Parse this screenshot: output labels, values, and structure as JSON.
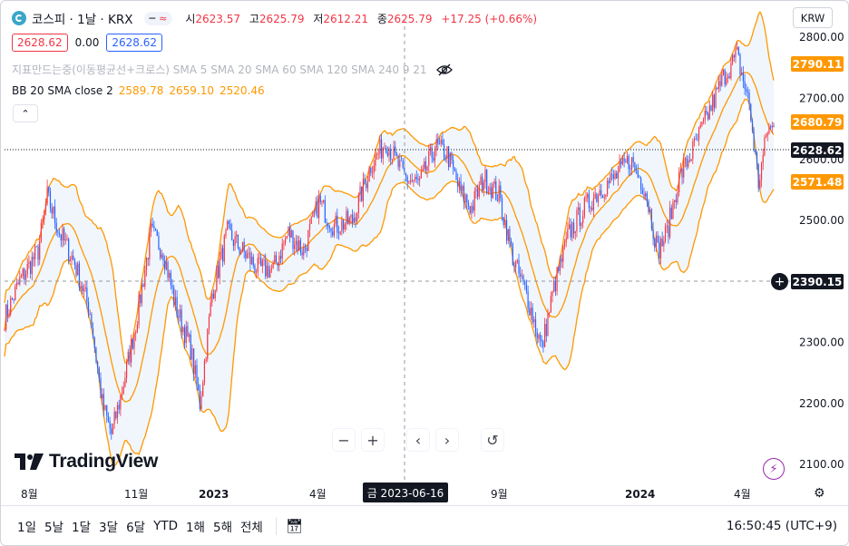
{
  "header": {
    "symbol": "코스피 · 1날 · KRX",
    "toggle_icon": "wave-icon",
    "toggle_text": "≈",
    "ohlc": [
      {
        "label": "시",
        "value": "2623.57"
      },
      {
        "label": "고",
        "value": "2625.79"
      },
      {
        "label": "저",
        "value": "2612.21"
      },
      {
        "label": "종",
        "value": "2625.79"
      }
    ],
    "change": "+17.25 (+0.66%)",
    "sell": "2628.62",
    "spread": "0.00",
    "buy": "2628.62",
    "currency": "KRW"
  },
  "indicators": {
    "ma_line": "지표만드는중(이동평균선+크로스) SMA 5 SMA 20 SMA 60 SMA 120 SMA 240 9 21",
    "bb_label": "BB 20 SMA close 2",
    "bb_values": [
      "2589.78",
      "2659.10",
      "2520.46"
    ],
    "collapse_icon": "chevron-up-icon"
  },
  "price_tags": {
    "upper": "2790.11",
    "basis": "2680.79",
    "last": "2628.62",
    "lower": "2571.48",
    "crosshair": "2390.15"
  },
  "axis": {
    "y_ticks": [
      "2800.00",
      "2700.00",
      "2600.00",
      "2500.00",
      "2400.00",
      "2300.00",
      "2200.00",
      "2100.00"
    ],
    "x_ticks": [
      "8월",
      "11월",
      "2023",
      "4월",
      "9월",
      "2024",
      "4월"
    ],
    "crosshair_date": "금 2023-06-16"
  },
  "brand": "TradingView",
  "timeframes": [
    "1일",
    "5날",
    "1달",
    "3달",
    "6달",
    "YTD",
    "1해",
    "5해",
    "전체"
  ],
  "clock": "16:50:45 (UTC+9)",
  "colors": {
    "up": "#f23645",
    "down": "#2962ff",
    "band": "#ff9800",
    "band_fill": "#f0f6fc",
    "last_tag": "#131722"
  },
  "chart_data": {
    "type": "candlestick",
    "ylim": [
      2075,
      2830
    ],
    "y_ticks": [
      2100,
      2200,
      2300,
      2400,
      2500,
      2600,
      2700,
      2800
    ],
    "bollinger": {
      "period": 20,
      "stddev": 2
    },
    "anchors": [
      {
        "t": 0,
        "p": 2340
      },
      {
        "t": 10,
        "p": 2400
      },
      {
        "t": 22,
        "p": 2450
      },
      {
        "t": 28,
        "p": 2540
      },
      {
        "t": 36,
        "p": 2480
      },
      {
        "t": 46,
        "p": 2430
      },
      {
        "t": 56,
        "p": 2350
      },
      {
        "t": 64,
        "p": 2200
      },
      {
        "t": 70,
        "p": 2150
      },
      {
        "t": 76,
        "p": 2210
      },
      {
        "t": 86,
        "p": 2330
      },
      {
        "t": 96,
        "p": 2480
      },
      {
        "t": 104,
        "p": 2450
      },
      {
        "t": 112,
        "p": 2360
      },
      {
        "t": 122,
        "p": 2290
      },
      {
        "t": 128,
        "p": 2200
      },
      {
        "t": 136,
        "p": 2380
      },
      {
        "t": 146,
        "p": 2480
      },
      {
        "t": 156,
        "p": 2450
      },
      {
        "t": 166,
        "p": 2420
      },
      {
        "t": 176,
        "p": 2420
      },
      {
        "t": 186,
        "p": 2480
      },
      {
        "t": 196,
        "p": 2450
      },
      {
        "t": 206,
        "p": 2530
      },
      {
        "t": 216,
        "p": 2490
      },
      {
        "t": 228,
        "p": 2500
      },
      {
        "t": 240,
        "p": 2590
      },
      {
        "t": 250,
        "p": 2630
      },
      {
        "t": 262,
        "p": 2570
      },
      {
        "t": 272,
        "p": 2560
      },
      {
        "t": 282,
        "p": 2620
      },
      {
        "t": 290,
        "p": 2610
      },
      {
        "t": 298,
        "p": 2550
      },
      {
        "t": 306,
        "p": 2520
      },
      {
        "t": 314,
        "p": 2570
      },
      {
        "t": 324,
        "p": 2540
      },
      {
        "t": 334,
        "p": 2430
      },
      {
        "t": 342,
        "p": 2380
      },
      {
        "t": 352,
        "p": 2290
      },
      {
        "t": 360,
        "p": 2390
      },
      {
        "t": 370,
        "p": 2480
      },
      {
        "t": 380,
        "p": 2520
      },
      {
        "t": 390,
        "p": 2550
      },
      {
        "t": 400,
        "p": 2570
      },
      {
        "t": 410,
        "p": 2600
      },
      {
        "t": 420,
        "p": 2550
      },
      {
        "t": 428,
        "p": 2450
      },
      {
        "t": 434,
        "p": 2480
      },
      {
        "t": 442,
        "p": 2570
      },
      {
        "t": 452,
        "p": 2620
      },
      {
        "t": 462,
        "p": 2680
      },
      {
        "t": 472,
        "p": 2740
      },
      {
        "t": 480,
        "p": 2770
      },
      {
        "t": 488,
        "p": 2690
      },
      {
        "t": 494,
        "p": 2560
      },
      {
        "t": 500,
        "p": 2650
      }
    ]
  }
}
